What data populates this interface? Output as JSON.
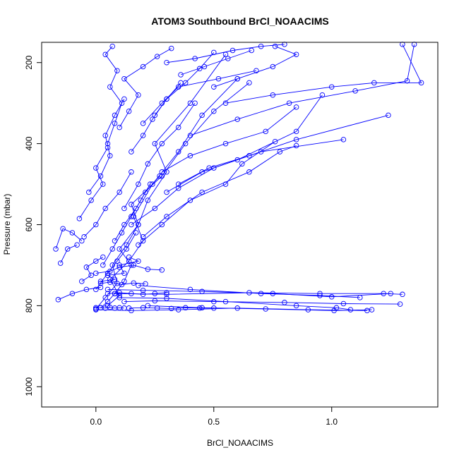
{
  "chart_data": {
    "type": "line",
    "title": "ATOM3 Southbound BrCl_NOAACIMS",
    "xlabel": "BrCl_NOAACIMS",
    "ylabel": "Pressure (mbar)",
    "xlim": [
      -0.23,
      1.45
    ],
    "ylim": [
      1050,
      150
    ],
    "y_reversed": true,
    "x_ticks": [
      0.0,
      0.5,
      1.0
    ],
    "x_tick_labels": [
      "0.0",
      "0.5",
      "1.0"
    ],
    "y_ticks": [
      200,
      400,
      600,
      800,
      1000
    ],
    "y_tick_labels": [
      "200",
      "400",
      "600",
      "800",
      "1000"
    ],
    "marker": "open-circle",
    "grid": false,
    "legend": "none",
    "series_color": "#0000ff",
    "series": [
      {
        "x": [
          0.02,
          0.05,
          0.08,
          0.12,
          0.15,
          0.1,
          0.18,
          0.22,
          0.3,
          0.25,
          0.4,
          0.55
        ],
        "y": [
          805,
          790,
          770,
          740,
          700,
          660,
          600,
          540,
          470,
          400,
          300,
          180
        ]
      },
      {
        "x": [
          0.05,
          0.1,
          0.06,
          0.14,
          0.2,
          0.16,
          0.24,
          0.35,
          0.45,
          0.6
        ],
        "y": [
          800,
          775,
          735,
          690,
          640,
          580,
          500,
          420,
          330,
          240
        ]
      },
      {
        "x": [
          0.0,
          0.04,
          0.09,
          0.07,
          0.13,
          0.18,
          0.15,
          0.28,
          0.38,
          0.5,
          0.65
        ],
        "y": [
          808,
          780,
          745,
          700,
          650,
          600,
          550,
          480,
          400,
          320,
          250
        ]
      },
      {
        "x": [
          0.08,
          0.3,
          0.65,
          0.95,
          1.22,
          1.3
        ],
        "y": [
          770,
          772,
          768,
          770,
          770,
          772
        ]
      },
      {
        "x": [
          0.12,
          0.25,
          0.5,
          0.8,
          1.05,
          1.29
        ],
        "y": [
          790,
          788,
          790,
          792,
          795,
          796
        ]
      },
      {
        "x": [
          0.05,
          0.2,
          0.45,
          0.75,
          1.0,
          1.25
        ],
        "y": [
          760,
          762,
          765,
          770,
          778,
          770
        ]
      },
      {
        "x": [
          0.0,
          0.15,
          0.35,
          0.6,
          0.9,
          1.15
        ],
        "y": [
          810,
          812,
          810,
          806,
          810,
          812
        ]
      },
      {
        "x": [
          0.1,
          0.3,
          0.55,
          0.85,
          1.02,
          1.08
        ],
        "y": [
          780,
          782,
          790,
          800,
          805,
          810
        ]
      },
      {
        "x": [
          0.18,
          0.4,
          0.7,
          0.95,
          1.12
        ],
        "y": [
          750,
          760,
          770,
          775,
          780
        ]
      },
      {
        "x": [
          0.22,
          0.45,
          0.72,
          1.01,
          1.17
        ],
        "y": [
          800,
          805,
          808,
          812,
          810
        ]
      },
      {
        "x": [
          0.0,
          0.06,
          0.1,
          0.16,
          0.22,
          0.28
        ],
        "y": [
          720,
          715,
          705,
          700,
          710,
          712
        ]
      },
      {
        "x": [
          0.02,
          0.08,
          0.05,
          0.12,
          0.1,
          0.18,
          0.14
        ],
        "y": [
          740,
          735,
          725,
          720,
          700,
          690,
          680
        ]
      },
      {
        "x": [
          -0.06,
          -0.02,
          -0.04,
          0.0,
          0.03
        ],
        "y": [
          740,
          725,
          705,
          690,
          680
        ]
      },
      {
        "x": [
          -0.17,
          -0.14,
          -0.1,
          -0.06
        ],
        "y": [
          660,
          610,
          620,
          640
        ]
      },
      {
        "x": [
          -0.15,
          -0.12,
          -0.08
        ],
        "y": [
          695,
          660,
          650
        ]
      },
      {
        "x": [
          -0.16,
          -0.1,
          -0.04,
          0.02
        ],
        "y": [
          785,
          770,
          760,
          755
        ]
      },
      {
        "x": [
          0.15,
          0.25,
          0.35,
          0.5,
          0.7,
          1.05
        ],
        "y": [
          600,
          560,
          510,
          460,
          420,
          390
        ]
      },
      {
        "x": [
          0.2,
          0.3,
          0.45,
          0.65,
          0.78,
          0.85
        ],
        "y": [
          630,
          580,
          520,
          470,
          420,
          405
        ]
      },
      {
        "x": [
          0.18,
          0.28,
          0.4,
          0.55,
          0.62,
          0.76
        ],
        "y": [
          650,
          600,
          540,
          500,
          450,
          395
        ]
      },
      {
        "x": [
          0.3,
          0.45,
          0.6,
          0.85,
          0.96
        ],
        "y": [
          520,
          470,
          440,
          370,
          280
        ]
      },
      {
        "x": [
          0.35,
          0.48,
          0.65,
          0.85,
          1.24
        ],
        "y": [
          500,
          460,
          430,
          390,
          330
        ]
      },
      {
        "x": [
          0.28,
          0.4,
          0.55,
          0.72,
          0.85
        ],
        "y": [
          470,
          430,
          400,
          370,
          310
        ]
      },
      {
        "x": [
          0.4,
          0.6,
          0.82,
          1.1,
          1.32,
          1.35
        ],
        "y": [
          380,
          340,
          300,
          270,
          245,
          155
        ]
      },
      {
        "x": [
          0.55,
          0.75,
          1.0,
          1.18,
          1.38,
          1.3
        ],
        "y": [
          300,
          280,
          260,
          250,
          250,
          155
        ]
      },
      {
        "x": [
          0.5,
          0.6,
          0.75,
          0.85,
          0.76
        ],
        "y": [
          260,
          240,
          210,
          180,
          160
        ]
      },
      {
        "x": [
          0.2,
          0.28,
          0.35,
          0.52,
          0.68
        ],
        "y": [
          350,
          300,
          260,
          240,
          220
        ]
      },
      {
        "x": [
          0.05,
          0.08,
          0.11,
          0.06,
          0.09,
          0.04,
          0.07
        ],
        "y": [
          400,
          350,
          300,
          260,
          220,
          180,
          160
        ]
      },
      {
        "x": [
          -0.03,
          0.02,
          0.06,
          0.04,
          0.08,
          0.12
        ],
        "y": [
          520,
          480,
          430,
          380,
          330,
          290
        ]
      },
      {
        "x": [
          -0.07,
          -0.02,
          0.03,
          0.0,
          0.05
        ],
        "y": [
          585,
          540,
          500,
          460,
          410
        ]
      },
      {
        "x": [
          -0.05,
          0.0,
          0.04,
          0.1,
          0.15
        ],
        "y": [
          630,
          600,
          560,
          520,
          470
        ]
      },
      {
        "x": [
          0.1,
          0.14,
          0.18,
          0.12,
          0.2,
          0.26,
          0.32
        ],
        "y": [
          360,
          320,
          280,
          240,
          210,
          185,
          165
        ]
      },
      {
        "x": [
          0.15,
          0.2,
          0.24,
          0.3,
          0.36
        ],
        "y": [
          420,
          380,
          340,
          290,
          250
        ]
      },
      {
        "x": [
          0.25,
          0.3,
          0.38,
          0.44,
          0.5
        ],
        "y": [
          330,
          290,
          250,
          215,
          175
        ]
      },
      {
        "x": [
          0.12,
          0.18,
          0.22,
          0.28,
          0.35,
          0.42
        ],
        "y": [
          560,
          500,
          450,
          400,
          360,
          300
        ]
      },
      {
        "x": [
          0.08,
          0.12,
          0.17,
          0.21,
          0.27
        ],
        "y": [
          640,
          600,
          560,
          520,
          480
        ]
      },
      {
        "x": [
          0.03,
          0.07,
          0.11,
          0.15,
          0.19,
          0.23
        ],
        "y": [
          700,
          660,
          620,
          580,
          540,
          500
        ]
      },
      {
        "x": [
          0.0,
          0.05,
          0.09,
          0.13,
          0.17
        ],
        "y": [
          760,
          720,
          690,
          660,
          620
        ]
      },
      {
        "x": [
          0.3,
          0.42,
          0.58,
          0.7,
          0.8
        ],
        "y": [
          200,
          190,
          170,
          160,
          155
        ]
      },
      {
        "x": [
          0.36,
          0.46,
          0.56,
          0.66
        ],
        "y": [
          230,
          210,
          190,
          170
        ]
      },
      {
        "x": [
          0.0,
          0.02,
          0.04,
          0.06,
          0.08,
          0.1,
          0.12
        ],
        "y": [
          805,
          805,
          806,
          804,
          806,
          805,
          806
        ]
      },
      {
        "x": [
          0.14,
          0.2,
          0.26,
          0.32,
          0.38,
          0.44,
          0.5
        ],
        "y": [
          806,
          805,
          806,
          807,
          805,
          806,
          806
        ]
      },
      {
        "x": [
          0.05,
          0.1,
          0.15,
          0.2,
          0.25,
          0.3
        ],
        "y": [
          770,
          768,
          770,
          772,
          770,
          768
        ]
      },
      {
        "x": [
          0.02,
          0.06,
          0.11,
          0.16,
          0.21
        ],
        "y": [
          745,
          742,
          748,
          744,
          746
        ]
      }
    ]
  }
}
